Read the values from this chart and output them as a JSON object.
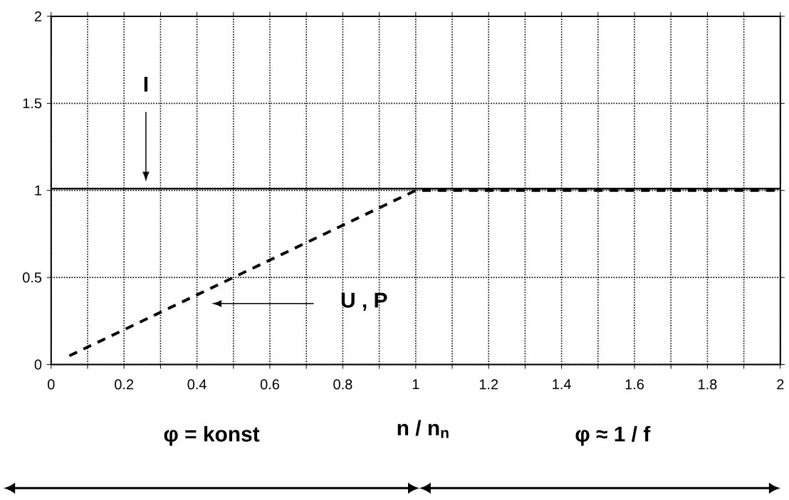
{
  "chart_data": {
    "type": "line",
    "xlabel": "n / n$_{n}$",
    "x": [
      0.05,
      1,
      2
    ],
    "series": [
      {
        "color": "#000000",
        "line_style": "solid",
        "x": [
          0,
          2
        ],
        "values": [
          1.01,
          1.01
        ]
      },
      {
        "color": "#000000",
        "line_style": "dashed",
        "values": [
          0.05,
          1,
          1
        ]
      }
    ],
    "xlim": [
      0,
      2
    ],
    "ylim": [
      0,
      2
    ],
    "xticks": [
      0,
      {
        "value": 0.1,
        "label": null
      },
      0.2,
      {
        "value": 0.3,
        "label": null
      },
      0.4,
      {
        "value": 0.5,
        "label": null
      },
      0.6,
      {
        "value": 0.7,
        "label": null
      },
      0.8,
      {
        "value": 0.9,
        "label": null
      },
      1,
      {
        "value": 1.1,
        "label": null
      },
      1.2,
      {
        "value": 1.3,
        "label": null
      },
      1.4,
      {
        "value": 1.5,
        "label": null
      },
      1.6,
      {
        "value": 1.7,
        "label": null
      },
      1.8,
      {
        "value": 1.9,
        "label": null
      },
      2
    ],
    "yticks": [
      0,
      0.5,
      1,
      1.5,
      2
    ],
    "grid": true,
    "annotations": [
      "I",
      "U , P",
      "φ = konst",
      "φ ≈ 1 / f"
    ]
  }
}
